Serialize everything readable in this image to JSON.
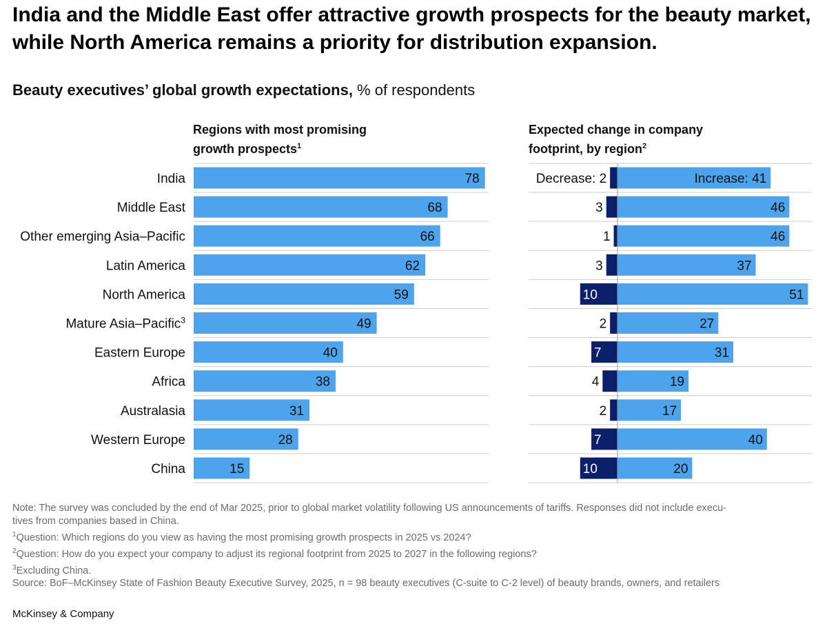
{
  "headline": "India and the Middle East offer attractive growth prospects for the beauty market, while North America remains a priority for distribution expansion.",
  "subtitle": {
    "bold": "Beauty executives’ global growth expectations,",
    "rest": " % of respondents"
  },
  "colors": {
    "bar": "#4ea4ec",
    "decrease": "#0c1f6b",
    "rule": "#cccccc",
    "text": "#111111"
  },
  "chart_data": [
    {
      "type": "bar",
      "orientation": "horizontal",
      "title": "Regions with most promising\ngrowth prospects",
      "title_footnote": "1",
      "categories": [
        "India",
        "Middle East",
        "Other emerging Asia–Pacific",
        "Latin America",
        "North America",
        "Mature Asia–Pacific",
        "Eastern Europe",
        "Africa",
        "Australasia",
        "Western Europe",
        "China"
      ],
      "category_footnotes": [
        "",
        "",
        "",
        "",
        "",
        "3",
        "",
        "",
        "",
        "",
        ""
      ],
      "values": [
        78,
        68,
        66,
        62,
        59,
        49,
        40,
        38,
        31,
        28,
        15
      ],
      "xlim": [
        0,
        80
      ]
    },
    {
      "type": "bar",
      "orientation": "horizontal-diverging",
      "title": "Expected change in company\nfootprint, by region",
      "title_footnote": "2",
      "categories": [
        "India",
        "Middle East",
        "Other emerging Asia–Pacific",
        "Latin America",
        "North America",
        "Mature Asia–Pacific",
        "Eastern Europe",
        "Africa",
        "Australasia",
        "Western Europe",
        "China"
      ],
      "series": [
        {
          "name": "Decrease",
          "values": [
            2,
            3,
            1,
            3,
            10,
            2,
            7,
            4,
            2,
            7,
            10
          ]
        },
        {
          "name": "Increase",
          "values": [
            41,
            46,
            46,
            37,
            51,
            27,
            31,
            19,
            17,
            40,
            20
          ]
        }
      ],
      "first_row_label_format": "{name}: {value}"
    }
  ],
  "footnotes": {
    "note": "Note: The survey was concluded by the end of Mar 2025, prior to global market volatility following US announcements of tariffs. Responses did not include executives from companies based in China.",
    "note_line1": "Note: The survey was concluded by the end of Mar 2025, prior to global market volatility following US announcements of tariffs. Responses did not include execu-",
    "note_line2": "tives from companies based in China.",
    "items": [
      {
        "mark": "1",
        "text": "Question: Which regions do you view as having the most promising growth prospects in 2025 vs 2024?"
      },
      {
        "mark": "2",
        "text": "Question: How do you expect your company to adjust its regional footprint from 2025 to 2027 in the following regions?"
      },
      {
        "mark": "3",
        "text": "Excluding China."
      }
    ],
    "source": "Source: BoF–McKinsey State of Fashion Beauty Executive Survey, 2025, n = 98 beauty executives (C-suite to C-2 level) of beauty brands, owners, and retailers"
  },
  "brand": "McKinsey & Company"
}
